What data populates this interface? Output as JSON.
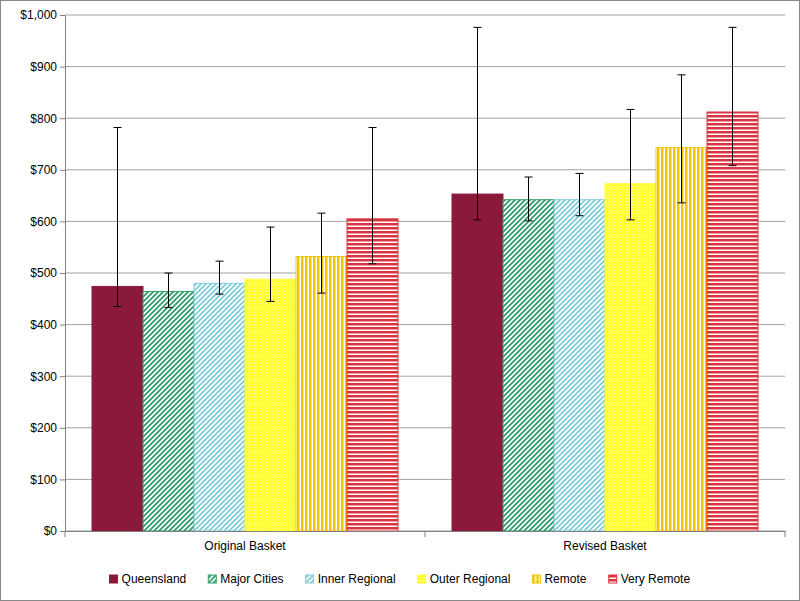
{
  "chart_data": {
    "type": "bar",
    "categories": [
      "Original Basket",
      "Revised Basket"
    ],
    "series": [
      {
        "name": "Queensland",
        "color": "#8b1a3a",
        "values": [
          474,
          653
        ],
        "low": [
          435,
          603
        ],
        "high": [
          782,
          976
        ]
      },
      {
        "name": "Major Cities",
        "color": "#2e9b6a",
        "values": [
          464,
          642
        ],
        "low": [
          433,
          601
        ],
        "high": [
          500,
          686
        ]
      },
      {
        "name": "Inner Regional",
        "color": "#7fcbd8",
        "values": [
          480,
          642
        ],
        "low": [
          459,
          611
        ],
        "high": [
          523,
          693
        ]
      },
      {
        "name": "Outer Regional",
        "color": "#ffff33",
        "values": [
          488,
          673
        ],
        "low": [
          445,
          603
        ],
        "high": [
          589,
          817
        ]
      },
      {
        "name": "Remote",
        "color": "#f5c400",
        "values": [
          532,
          743
        ],
        "low": [
          461,
          636
        ],
        "high": [
          616,
          884
        ]
      },
      {
        "name": "Very Remote",
        "color": "#d9333f",
        "values": [
          605,
          812
        ],
        "low": [
          518,
          708
        ],
        "high": [
          782,
          976
        ]
      }
    ],
    "ylim": [
      0,
      1000
    ],
    "yticks": [
      {
        "value": 0,
        "label": "$0"
      },
      {
        "value": 100,
        "label": "$100"
      },
      {
        "value": 200,
        "label": "$200"
      },
      {
        "value": 300,
        "label": "$300"
      },
      {
        "value": 400,
        "label": "$400"
      },
      {
        "value": 500,
        "label": "$500"
      },
      {
        "value": 600,
        "label": "$600"
      },
      {
        "value": 700,
        "label": "$700"
      },
      {
        "value": 800,
        "label": "$800"
      },
      {
        "value": 900,
        "label": "$900"
      },
      {
        "value": 1000,
        "label": "$1,000"
      }
    ],
    "grid": true,
    "legend": "bottom"
  }
}
